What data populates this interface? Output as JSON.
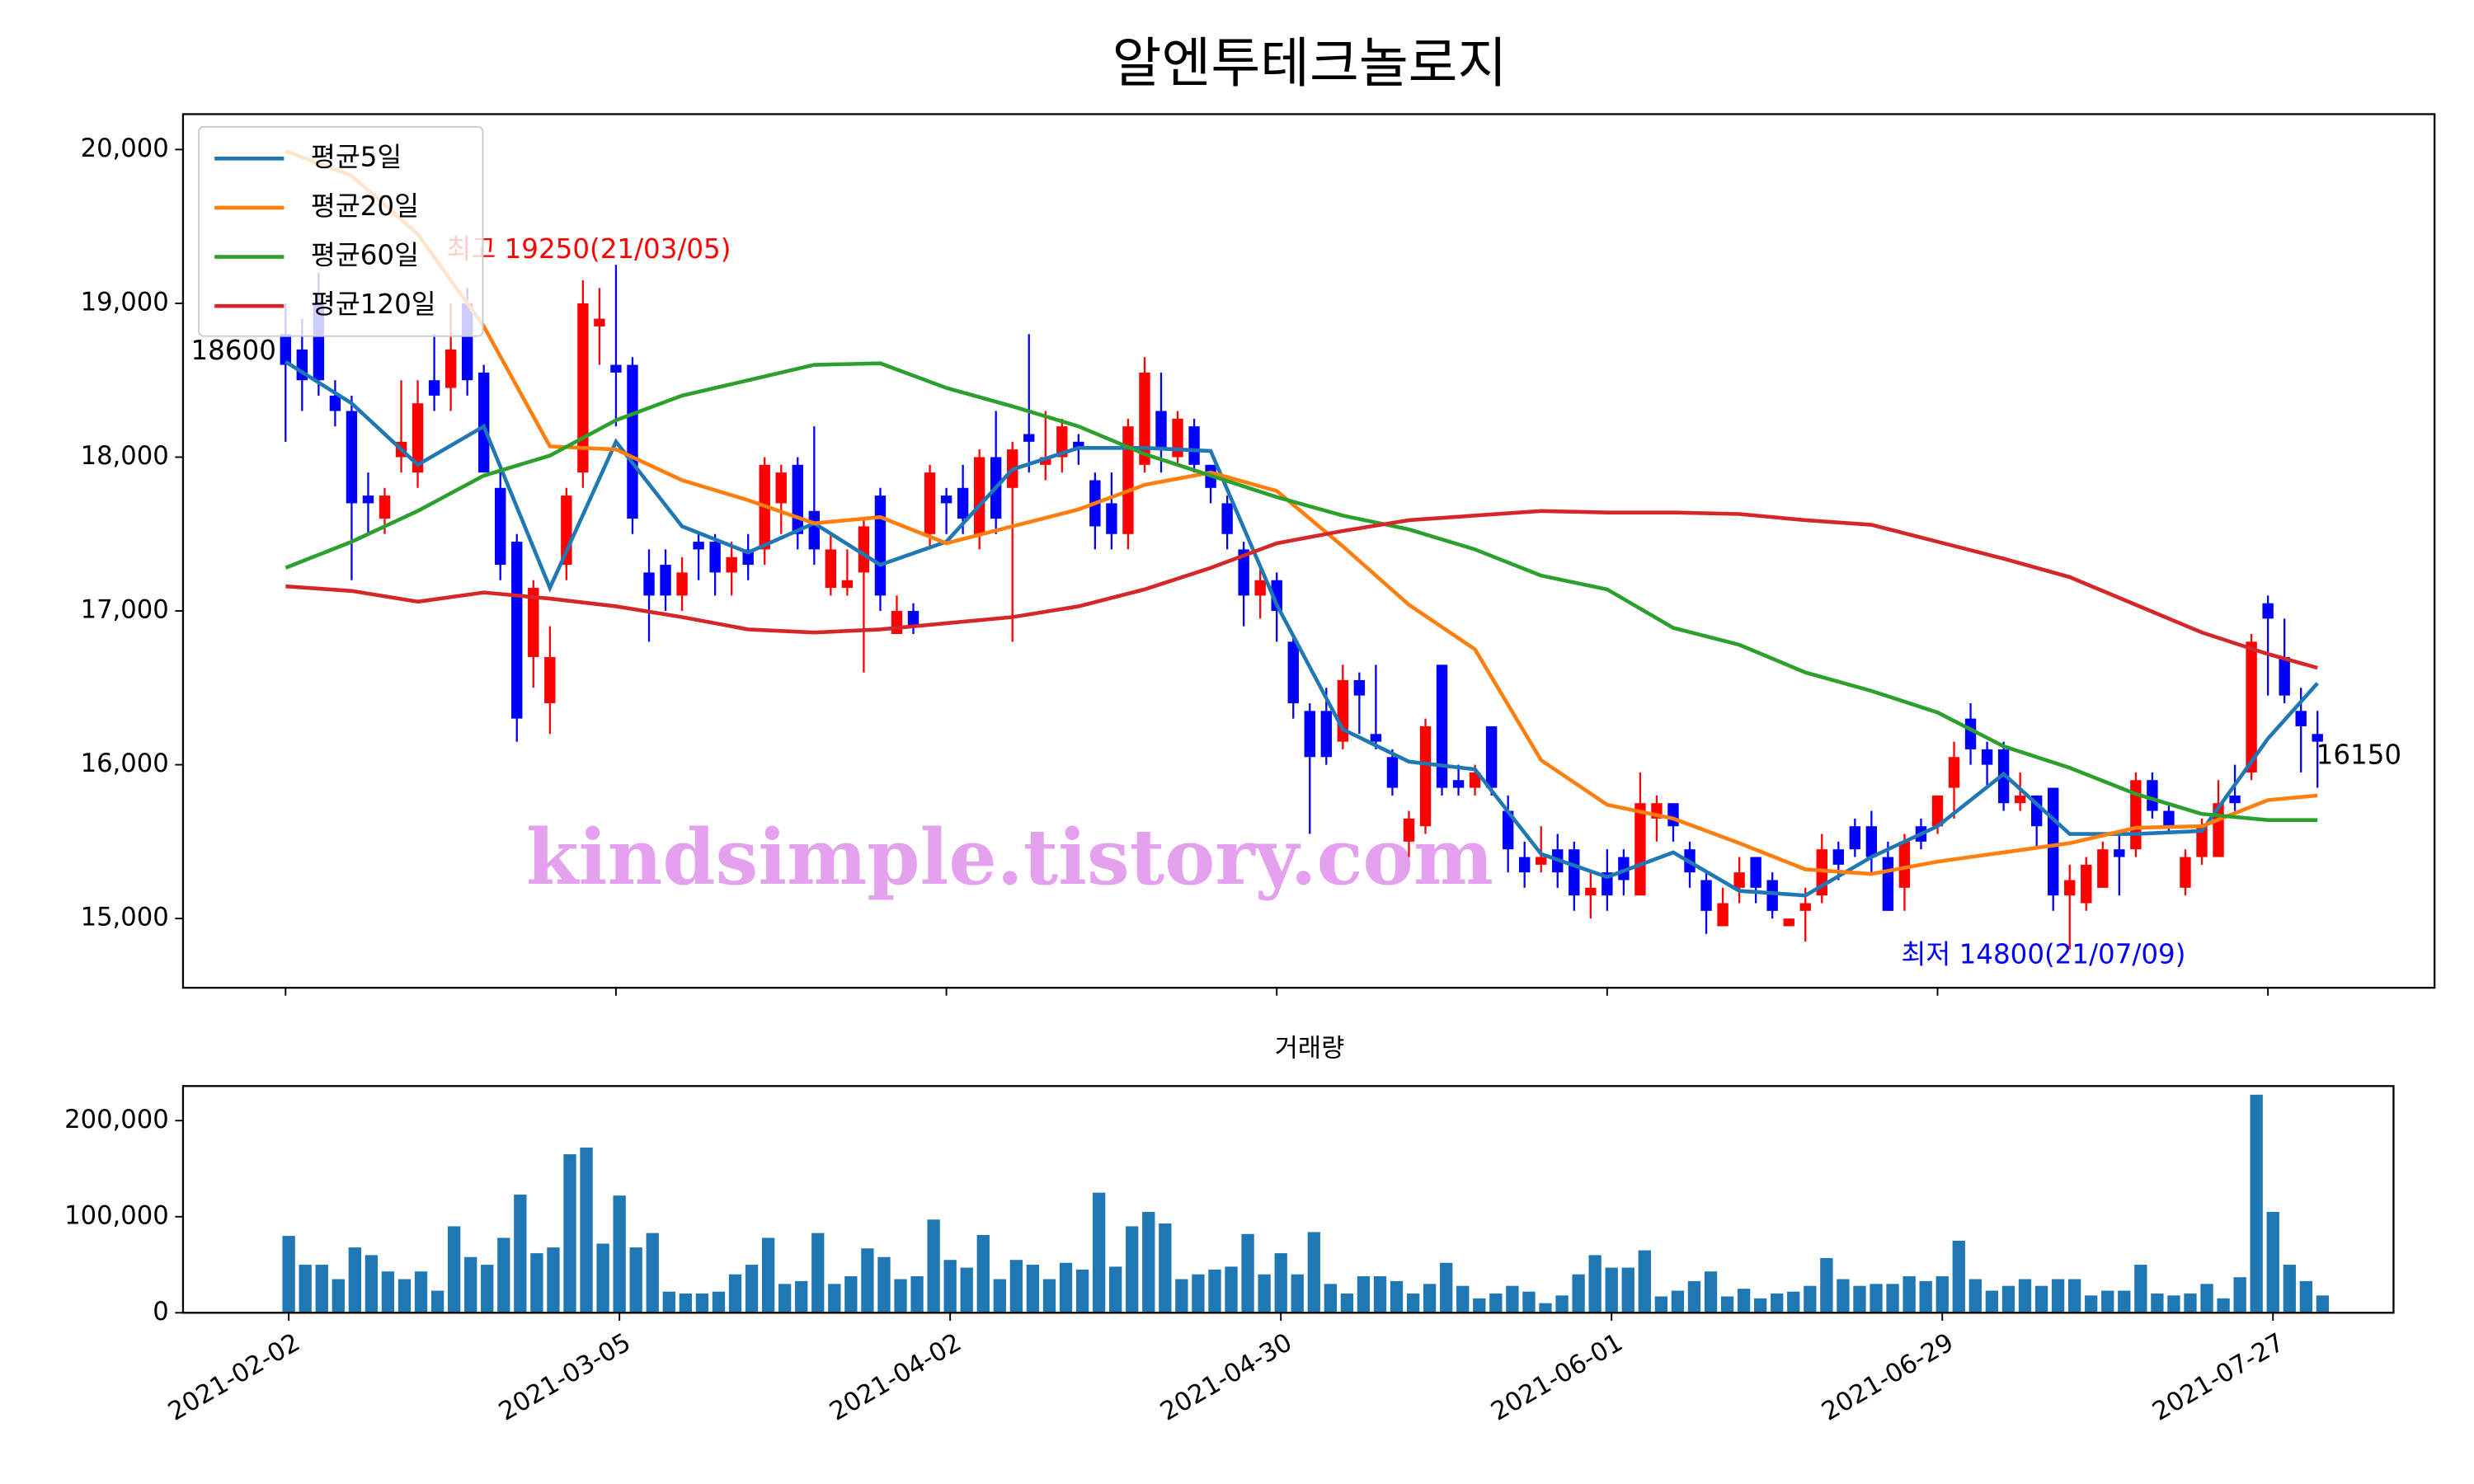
{
  "chart_data": {
    "type": "candlestick",
    "title": "알엔투테크놀로지",
    "x": [
      "2021-02-02",
      "2021-02-03",
      "2021-02-04",
      "2021-02-05",
      "2021-02-08",
      "2021-02-09",
      "2021-02-10",
      "2021-02-15",
      "2021-02-16",
      "2021-02-17",
      "2021-02-18",
      "2021-02-19",
      "2021-02-22",
      "2021-02-23",
      "2021-02-24",
      "2021-02-25",
      "2021-02-26",
      "2021-03-02",
      "2021-03-03",
      "2021-03-04",
      "2021-03-05",
      "2021-03-08",
      "2021-03-09",
      "2021-03-10",
      "2021-03-11",
      "2021-03-12",
      "2021-03-15",
      "2021-03-16",
      "2021-03-17",
      "2021-03-18",
      "2021-03-19",
      "2021-03-22",
      "2021-03-23",
      "2021-03-24",
      "2021-03-25",
      "2021-03-26",
      "2021-03-29",
      "2021-03-30",
      "2021-03-31",
      "2021-04-01",
      "2021-04-02",
      "2021-04-05",
      "2021-04-06",
      "2021-04-07",
      "2021-04-08",
      "2021-04-09",
      "2021-04-12",
      "2021-04-13",
      "2021-04-14",
      "2021-04-15",
      "2021-04-16",
      "2021-04-19",
      "2021-04-20",
      "2021-04-21",
      "2021-04-22",
      "2021-04-23",
      "2021-04-26",
      "2021-04-27",
      "2021-04-28",
      "2021-04-29",
      "2021-04-30",
      "2021-05-03",
      "2021-05-04",
      "2021-05-06",
      "2021-05-07",
      "2021-05-10",
      "2021-05-11",
      "2021-05-12",
      "2021-05-13",
      "2021-05-14",
      "2021-05-17",
      "2021-05-18",
      "2021-05-20",
      "2021-05-21",
      "2021-05-24",
      "2021-05-25",
      "2021-05-26",
      "2021-05-27",
      "2021-05-28",
      "2021-05-31",
      "2021-06-01",
      "2021-06-02",
      "2021-06-03",
      "2021-06-04",
      "2021-06-07",
      "2021-06-08",
      "2021-06-09",
      "2021-06-10",
      "2021-06-11",
      "2021-06-14",
      "2021-06-15",
      "2021-06-16",
      "2021-06-17",
      "2021-06-18",
      "2021-06-21",
      "2021-06-22",
      "2021-06-23",
      "2021-06-24",
      "2021-06-25",
      "2021-06-28",
      "2021-06-29",
      "2021-06-30",
      "2021-07-01",
      "2021-07-02",
      "2021-07-05",
      "2021-07-06",
      "2021-07-07",
      "2021-07-08",
      "2021-07-09",
      "2021-07-12",
      "2021-07-13",
      "2021-07-14",
      "2021-07-15",
      "2021-07-16",
      "2021-07-19",
      "2021-07-20",
      "2021-07-21",
      "2021-07-22",
      "2021-07-23",
      "2021-07-26",
      "2021-07-27",
      "2021-07-28",
      "2021-07-29",
      "2021-07-30"
    ],
    "open": [
      18800,
      18700,
      19000,
      18400,
      18300,
      17750,
      17600,
      18000,
      17900,
      18500,
      18450,
      19000,
      18550,
      17800,
      17450,
      16700,
      16400,
      17300,
      17900,
      18850,
      18600,
      18600,
      17250,
      17300,
      17100,
      17450,
      17450,
      17250,
      17400,
      17400,
      17700,
      17950,
      17650,
      17150,
      17150,
      17250,
      17750,
      16850,
      17000,
      17500,
      17750,
      17800,
      17500,
      18000,
      17800,
      18150,
      17950,
      18000,
      18100,
      17850,
      17700,
      17500,
      17950,
      18300,
      18000,
      18200,
      17950,
      17700,
      17400,
      17100,
      17200,
      16800,
      16350,
      16350,
      16150,
      16550,
      16200,
      16050,
      15500,
      15600,
      16650,
      15900,
      15850,
      16250,
      15700,
      15400,
      15350,
      15450,
      15450,
      15150,
      15300,
      15400,
      15150,
      15650,
      15750,
      15450,
      15250,
      14950,
      15200,
      15400,
      15250,
      14950,
      15050,
      15150,
      15450,
      15600,
      15600,
      15400,
      15200,
      15600,
      15600,
      15850,
      16300,
      16100,
      16100,
      15750,
      15800,
      15850,
      15150,
      15100,
      15200,
      15450,
      15450,
      15900,
      15700,
      15200,
      15400,
      15400,
      15800,
      15950,
      17050,
      16700,
      16350,
      16200
    ],
    "high": [
      19000,
      18900,
      19200,
      18500,
      18400,
      17900,
      17800,
      18500,
      18500,
      18800,
      19000,
      19100,
      18600,
      17900,
      17500,
      17200,
      16900,
      17800,
      19150,
      19100,
      19250,
      18650,
      17400,
      17400,
      17350,
      17500,
      17500,
      17450,
      17500,
      18000,
      17950,
      18000,
      18200,
      17500,
      17400,
      17600,
      17800,
      17100,
      17050,
      17950,
      17800,
      17950,
      18050,
      18300,
      18100,
      18800,
      18300,
      18250,
      18150,
      17900,
      17900,
      18250,
      18650,
      18550,
      18300,
      18250,
      17950,
      17750,
      17450,
      17300,
      17250,
      16850,
      16400,
      16500,
      16650,
      16600,
      16650,
      16100,
      15700,
      16300,
      16650,
      16000,
      16000,
      16250,
      15800,
      15500,
      15600,
      15550,
      15500,
      15300,
      15450,
      15450,
      15950,
      15800,
      15750,
      15500,
      15300,
      15200,
      15400,
      15400,
      15300,
      15000,
      15200,
      15550,
      15500,
      15650,
      15700,
      15500,
      15550,
      15650,
      15800,
      16150,
      16400,
      16150,
      16150,
      15950,
      15800,
      15850,
      15350,
      15400,
      15500,
      15550,
      15950,
      15950,
      15750,
      15450,
      15650,
      15900,
      16000,
      16850,
      17100,
      16950,
      16500,
      16350
    ],
    "low": [
      18100,
      18300,
      18400,
      18200,
      17200,
      17500,
      17500,
      17900,
      17800,
      18300,
      18300,
      18400,
      17900,
      17200,
      16150,
      16500,
      16200,
      17200,
      17800,
      18600,
      18200,
      17500,
      16800,
      17000,
      17000,
      17200,
      17100,
      17100,
      17200,
      17300,
      17500,
      17400,
      17300,
      17100,
      17100,
      16600,
      17000,
      16850,
      16850,
      17400,
      17500,
      17500,
      17400,
      17500,
      16800,
      17900,
      17850,
      17900,
      17950,
      17400,
      17400,
      17400,
      17900,
      17900,
      17950,
      17900,
      17700,
      17400,
      16900,
      16950,
      16800,
      16300,
      15550,
      16000,
      16100,
      16200,
      16100,
      15800,
      15400,
      15550,
      15800,
      15800,
      15800,
      15800,
      15300,
      15200,
      15300,
      15200,
      15050,
      15000,
      15050,
      15150,
      15150,
      15500,
      15500,
      15200,
      14900,
      14950,
      15100,
      15100,
      15000,
      14950,
      14850,
      15100,
      15250,
      15400,
      15300,
      15050,
      15050,
      15450,
      15550,
      15650,
      16000,
      15850,
      15700,
      15700,
      15450,
      15050,
      14800,
      15050,
      15200,
      15150,
      15400,
      15650,
      15550,
      15150,
      15350,
      15400,
      15700,
      15900,
      16450,
      16400,
      15950,
      15850
    ],
    "close": [
      18600,
      18500,
      18500,
      18300,
      17700,
      17700,
      17750,
      18100,
      18350,
      18400,
      18700,
      18500,
      17900,
      17300,
      16300,
      17150,
      16700,
      17750,
      19000,
      18900,
      18550,
      17600,
      17100,
      17100,
      17250,
      17400,
      17250,
      17350,
      17300,
      17950,
      17900,
      17500,
      17400,
      17400,
      17200,
      17550,
      17100,
      17000,
      16900,
      17900,
      17700,
      17600,
      18000,
      17600,
      18050,
      18100,
      18000,
      18200,
      18050,
      17550,
      17500,
      18200,
      18550,
      18050,
      18250,
      17950,
      17800,
      17500,
      17100,
      17200,
      17000,
      16400,
      16050,
      16050,
      16550,
      16450,
      16150,
      15850,
      15650,
      16250,
      15850,
      15850,
      15950,
      15850,
      15450,
      15300,
      15400,
      15300,
      15150,
      15200,
      15150,
      15250,
      15750,
      15750,
      15600,
      15300,
      15050,
      15100,
      15300,
      15200,
      15050,
      15000,
      15100,
      15450,
      15350,
      15450,
      15400,
      15050,
      15500,
      15500,
      15800,
      16050,
      16100,
      16000,
      15750,
      15800,
      15600,
      15150,
      15250,
      15350,
      15450,
      15400,
      15900,
      15700,
      15600,
      15400,
      15600,
      15750,
      15750,
      16800,
      16950,
      16450,
      16250,
      16150
    ],
    "up_color": "#ff0000",
    "down_color": "#0000ff",
    "ylim": [
      14550,
      20230
    ],
    "yticks": [
      {
        "value": 15000,
        "label": "15,000"
      },
      {
        "value": 16000,
        "label": "16,000"
      },
      {
        "value": 17000,
        "label": "17,000"
      },
      {
        "value": 18000,
        "label": "18,000"
      },
      {
        "value": 19000,
        "label": "19,000"
      },
      {
        "value": 20000,
        "label": "20,000"
      }
    ],
    "xticks": [
      "2021-02-02",
      "2021-03-05",
      "2021-04-02",
      "2021-04-30",
      "2021-06-01",
      "2021-06-29",
      "2021-07-27"
    ],
    "legend": "upper left",
    "series": [
      {
        "name": "평균5일",
        "color": "#1f77b4",
        "x": [
          "2021-02-02",
          "2021-02-08",
          "2021-02-16",
          "2021-02-22",
          "2021-02-26",
          "2021-03-05",
          "2021-03-11",
          "2021-03-17",
          "2021-03-23",
          "2021-03-29",
          "2021-04-02",
          "2021-04-08",
          "2021-04-14",
          "2021-04-20",
          "2021-04-26",
          "2021-04-30",
          "2021-05-07",
          "2021-05-13",
          "2021-05-20",
          "2021-05-26",
          "2021-06-01",
          "2021-06-07",
          "2021-06-11",
          "2021-06-17",
          "2021-06-23",
          "2021-06-29",
          "2021-07-05",
          "2021-07-09",
          "2021-07-15",
          "2021-07-21",
          "2021-07-27",
          "2021-07-30"
        ],
        "values": [
          18620,
          18350,
          17950,
          18200,
          17150,
          18100,
          17550,
          17380,
          17570,
          17300,
          17450,
          17920,
          18060,
          18060,
          18040,
          17040,
          16230,
          16020,
          15970,
          15420,
          15270,
          15430,
          15180,
          15150,
          15400,
          15600,
          15940,
          15550,
          15550,
          15570,
          16170,
          16530
        ]
      },
      {
        "name": "평균20일",
        "color": "#ff7f0e",
        "x": [
          "2021-02-02",
          "2021-02-08",
          "2021-02-16",
          "2021-02-22",
          "2021-02-26",
          "2021-03-05",
          "2021-03-11",
          "2021-03-17",
          "2021-03-23",
          "2021-03-29",
          "2021-04-02",
          "2021-04-08",
          "2021-04-14",
          "2021-04-20",
          "2021-04-26",
          "2021-04-30",
          "2021-05-07",
          "2021-05-13",
          "2021-05-20",
          "2021-05-26",
          "2021-06-01",
          "2021-06-07",
          "2021-06-11",
          "2021-06-17",
          "2021-06-23",
          "2021-06-29",
          "2021-07-05",
          "2021-07-09",
          "2021-07-15",
          "2021-07-21",
          "2021-07-27",
          "2021-07-30"
        ],
        "values": [
          19990,
          19830,
          19450,
          18850,
          18070,
          18050,
          17850,
          17720,
          17570,
          17610,
          17440,
          17550,
          17660,
          17820,
          17900,
          17780,
          17420,
          17040,
          16750,
          16030,
          15740,
          15650,
          15490,
          15320,
          15290,
          15370,
          15430,
          15490,
          15590,
          15600,
          15770,
          15800
        ]
      },
      {
        "name": "평균60일",
        "color": "#2ca02c",
        "x": [
          "2021-02-02",
          "2021-02-08",
          "2021-02-16",
          "2021-02-22",
          "2021-02-26",
          "2021-03-05",
          "2021-03-11",
          "2021-03-17",
          "2021-03-23",
          "2021-03-29",
          "2021-04-02",
          "2021-04-08",
          "2021-04-14",
          "2021-04-20",
          "2021-04-26",
          "2021-04-30",
          "2021-05-07",
          "2021-05-13",
          "2021-05-20",
          "2021-05-26",
          "2021-06-01",
          "2021-06-07",
          "2021-06-11",
          "2021-06-17",
          "2021-06-23",
          "2021-06-29",
          "2021-07-05",
          "2021-07-09",
          "2021-07-15",
          "2021-07-21",
          "2021-07-27",
          "2021-07-30"
        ],
        "values": [
          17280,
          17450,
          17650,
          17880,
          18010,
          18240,
          18400,
          18500,
          18600,
          18610,
          18450,
          18330,
          18200,
          18020,
          17880,
          17740,
          17620,
          17530,
          17400,
          17230,
          17140,
          16890,
          16780,
          16600,
          16480,
          16340,
          16120,
          15980,
          15810,
          15680,
          15640,
          15640
        ]
      },
      {
        "name": "평균120일",
        "color": "#d62728",
        "x": [
          "2021-02-02",
          "2021-02-08",
          "2021-02-16",
          "2021-02-22",
          "2021-02-26",
          "2021-03-05",
          "2021-03-11",
          "2021-03-17",
          "2021-03-23",
          "2021-03-29",
          "2021-04-02",
          "2021-04-08",
          "2021-04-14",
          "2021-04-20",
          "2021-04-26",
          "2021-04-30",
          "2021-05-07",
          "2021-05-13",
          "2021-05-20",
          "2021-05-26",
          "2021-06-01",
          "2021-06-07",
          "2021-06-11",
          "2021-06-17",
          "2021-06-23",
          "2021-06-29",
          "2021-07-05",
          "2021-07-09",
          "2021-07-15",
          "2021-07-21",
          "2021-07-27",
          "2021-07-30"
        ],
        "values": [
          17160,
          17130,
          17060,
          17120,
          17080,
          17030,
          16960,
          16880,
          16860,
          16880,
          16920,
          16960,
          17030,
          17140,
          17280,
          17440,
          17520,
          17590,
          17620,
          17650,
          17640,
          17640,
          17630,
          17590,
          17560,
          17450,
          17340,
          17220,
          17040,
          16860,
          16720,
          16630
        ]
      }
    ],
    "annotations": [
      {
        "text": "최고 19250(21/03/05)",
        "color": "#ff0000"
      },
      {
        "text": "최저 14800(21/07/09)",
        "color": "#0000ff"
      },
      {
        "text": "18600",
        "color": "#000000"
      },
      {
        "text": "16150",
        "color": "#000000"
      }
    ],
    "watermark": {
      "text": "kindsimple.tistory.com",
      "color": "#e4a2ee"
    },
    "volume": {
      "title": "거래량",
      "color": "#1f77b4",
      "values": [
        80000,
        50000,
        50000,
        35000,
        68000,
        60000,
        43000,
        35000,
        43000,
        23000,
        90000,
        58000,
        50000,
        78000,
        123000,
        62000,
        68000,
        165000,
        172000,
        72000,
        122000,
        68000,
        83000,
        22000,
        20000,
        20000,
        22000,
        40000,
        50000,
        78000,
        30000,
        33000,
        83000,
        30000,
        38000,
        67000,
        58000,
        35000,
        38000,
        97000,
        55000,
        47000,
        81000,
        35000,
        55000,
        50000,
        35000,
        52000,
        45000,
        125000,
        48000,
        90000,
        105000,
        93000,
        35000,
        40000,
        45000,
        48000,
        82000,
        40000,
        62000,
        40000,
        84000,
        30000,
        20000,
        38000,
        38000,
        33000,
        20000,
        30000,
        52000,
        28000,
        15000,
        20000,
        28000,
        22000,
        10000,
        18000,
        40000,
        60000,
        47000,
        47000,
        65000,
        17000,
        23000,
        33000,
        43000,
        17000,
        25000,
        15000,
        20000,
        22000,
        28000,
        57000,
        35000,
        28000,
        30000,
        30000,
        38000,
        33000,
        38000,
        75000,
        35000,
        23000,
        28000,
        35000,
        28000,
        35000,
        35000,
        18000,
        23000,
        23000,
        50000,
        20000,
        18000,
        20000,
        30000,
        15000,
        37000,
        227000,
        105000,
        50000,
        33000,
        18000
      ],
      "ylim": [
        0,
        236000
      ],
      "yticks": [
        0,
        {
          "value": 100000,
          "label": "100,000"
        },
        {
          "value": 200000,
          "label": "200,000"
        }
      ]
    }
  }
}
